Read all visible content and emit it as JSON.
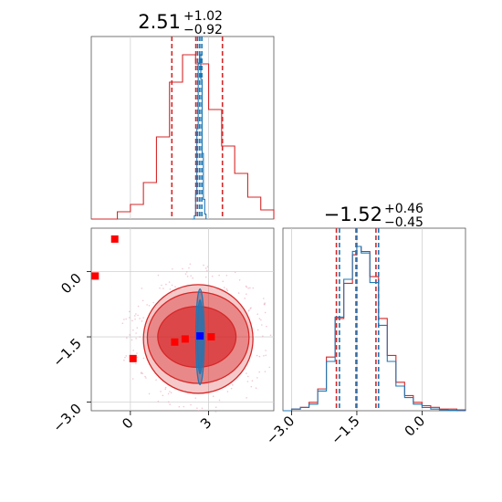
{
  "chart_data": [
    {
      "type": "area",
      "panel": "marginal-x",
      "title_main": "2.51",
      "title_plus": "+1.02",
      "title_minus": "−0.92",
      "xlim": [
        -1.5,
        5.5
      ],
      "grid": true,
      "series": [
        {
          "name": "",
          "color": "#d62728",
          "x": [
            -1.5,
            -0.5,
            0.0,
            0.5,
            1.0,
            1.5,
            2.0,
            2.5,
            3.0,
            3.5,
            4.0,
            4.5,
            5.0,
            5.5
          ],
          "y": [
            0,
            0.004,
            0.008,
            0.02,
            0.045,
            0.075,
            0.09,
            0.085,
            0.06,
            0.04,
            0.025,
            0.012,
            0.005,
            0
          ],
          "quantiles": [
            1.59,
            2.51,
            3.53
          ]
        },
        {
          "name": "",
          "color": "#1f77b4",
          "x": [
            2.35,
            2.45,
            2.5,
            2.55,
            2.6,
            2.65,
            2.7,
            2.75,
            2.8,
            2.85,
            2.9
          ],
          "y": [
            0,
            0.02,
            0.15,
            0.55,
            0.95,
            1.0,
            0.85,
            0.4,
            0.12,
            0.03,
            0
          ],
          "quantiles": [
            2.58,
            2.66,
            2.74
          ]
        }
      ]
    },
    {
      "type": "area",
      "panel": "marginal-y",
      "title_main": "−1.52",
      "title_plus": "+0.46",
      "title_minus": "−0.45",
      "xlim": [
        -3.2,
        1.0
      ],
      "xticks": [
        "−3.0",
        "−1.5",
        "0.0"
      ],
      "xtick_values": [
        -3.0,
        -1.5,
        0.0
      ],
      "grid": true,
      "series": [
        {
          "name": "",
          "color": "#d62728",
          "x": [
            -3.2,
            -3.0,
            -2.8,
            -2.6,
            -2.4,
            -2.2,
            -2.0,
            -1.8,
            -1.6,
            -1.5,
            -1.4,
            -1.2,
            -1.0,
            -0.8,
            -0.6,
            -0.4,
            -0.2,
            0.0,
            0.2,
            0.4,
            0.6,
            0.8,
            1.0
          ],
          "y": [
            0,
            0.01,
            0.02,
            0.05,
            0.13,
            0.32,
            0.55,
            0.76,
            0.93,
            0.98,
            0.95,
            0.8,
            0.55,
            0.33,
            0.17,
            0.09,
            0.05,
            0.03,
            0.02,
            0.01,
            0.01,
            0.005,
            0
          ],
          "quantiles": [
            -1.97,
            -1.52,
            -1.06
          ]
        },
        {
          "name": "",
          "color": "#1f77b4",
          "x": [
            -3.2,
            -3.0,
            -2.8,
            -2.6,
            -2.4,
            -2.2,
            -2.0,
            -1.8,
            -1.6,
            -1.5,
            -1.4,
            -1.2,
            -1.0,
            -0.8,
            -0.6,
            -0.4,
            -0.2,
            0.0,
            0.2,
            0.4,
            0.6,
            0.8,
            1.0
          ],
          "y": [
            0,
            0.01,
            0.02,
            0.04,
            0.12,
            0.3,
            0.57,
            0.8,
            0.97,
            1.0,
            0.96,
            0.78,
            0.52,
            0.3,
            0.15,
            0.08,
            0.04,
            0.02,
            0.01,
            0.005,
            0.003,
            0.001,
            0
          ],
          "quantiles": [
            -1.9,
            -1.5,
            -1.0
          ]
        }
      ]
    },
    {
      "type": "scatter",
      "panel": "joint",
      "xlim": [
        -1.5,
        5.5
      ],
      "ylim": [
        -3.2,
        1.0
      ],
      "xticks": [
        "0",
        "3"
      ],
      "xtick_values": [
        0,
        3
      ],
      "yticks": [
        "−3.0",
        "−1.5",
        "0.0"
      ],
      "ytick_values": [
        -3.0,
        -1.5,
        0.0
      ],
      "grid": true,
      "red_contours": [
        {
          "cx": 2.6,
          "cy": -1.55,
          "rx": 2.1,
          "ry": 1.25,
          "opacity": 0.25
        },
        {
          "cx": 2.6,
          "cy": -1.52,
          "rx": 1.95,
          "ry": 1.05,
          "opacity": 0.4
        },
        {
          "cx": 2.55,
          "cy": -1.5,
          "rx": 1.5,
          "ry": 0.7,
          "opacity": 0.65
        }
      ],
      "blue_contours": [
        {
          "cx": 2.67,
          "cy": -1.5,
          "rx": 0.16,
          "ry": 1.1,
          "opacity": 0.4
        },
        {
          "cx": 2.67,
          "cy": -1.5,
          "rx": 0.1,
          "ry": 0.85,
          "opacity": 0.75
        }
      ],
      "red_markers": [
        {
          "x": -1.35,
          "y": -0.1
        },
        {
          "x": -0.6,
          "y": 0.75
        },
        {
          "x": 0.1,
          "y": -2.0
        },
        {
          "x": 1.7,
          "y": -1.62
        },
        {
          "x": 2.1,
          "y": -1.55
        },
        {
          "x": 3.1,
          "y": -1.5
        }
      ],
      "blue_markers": [
        {
          "x": 2.67,
          "y": -1.48
        }
      ]
    }
  ]
}
